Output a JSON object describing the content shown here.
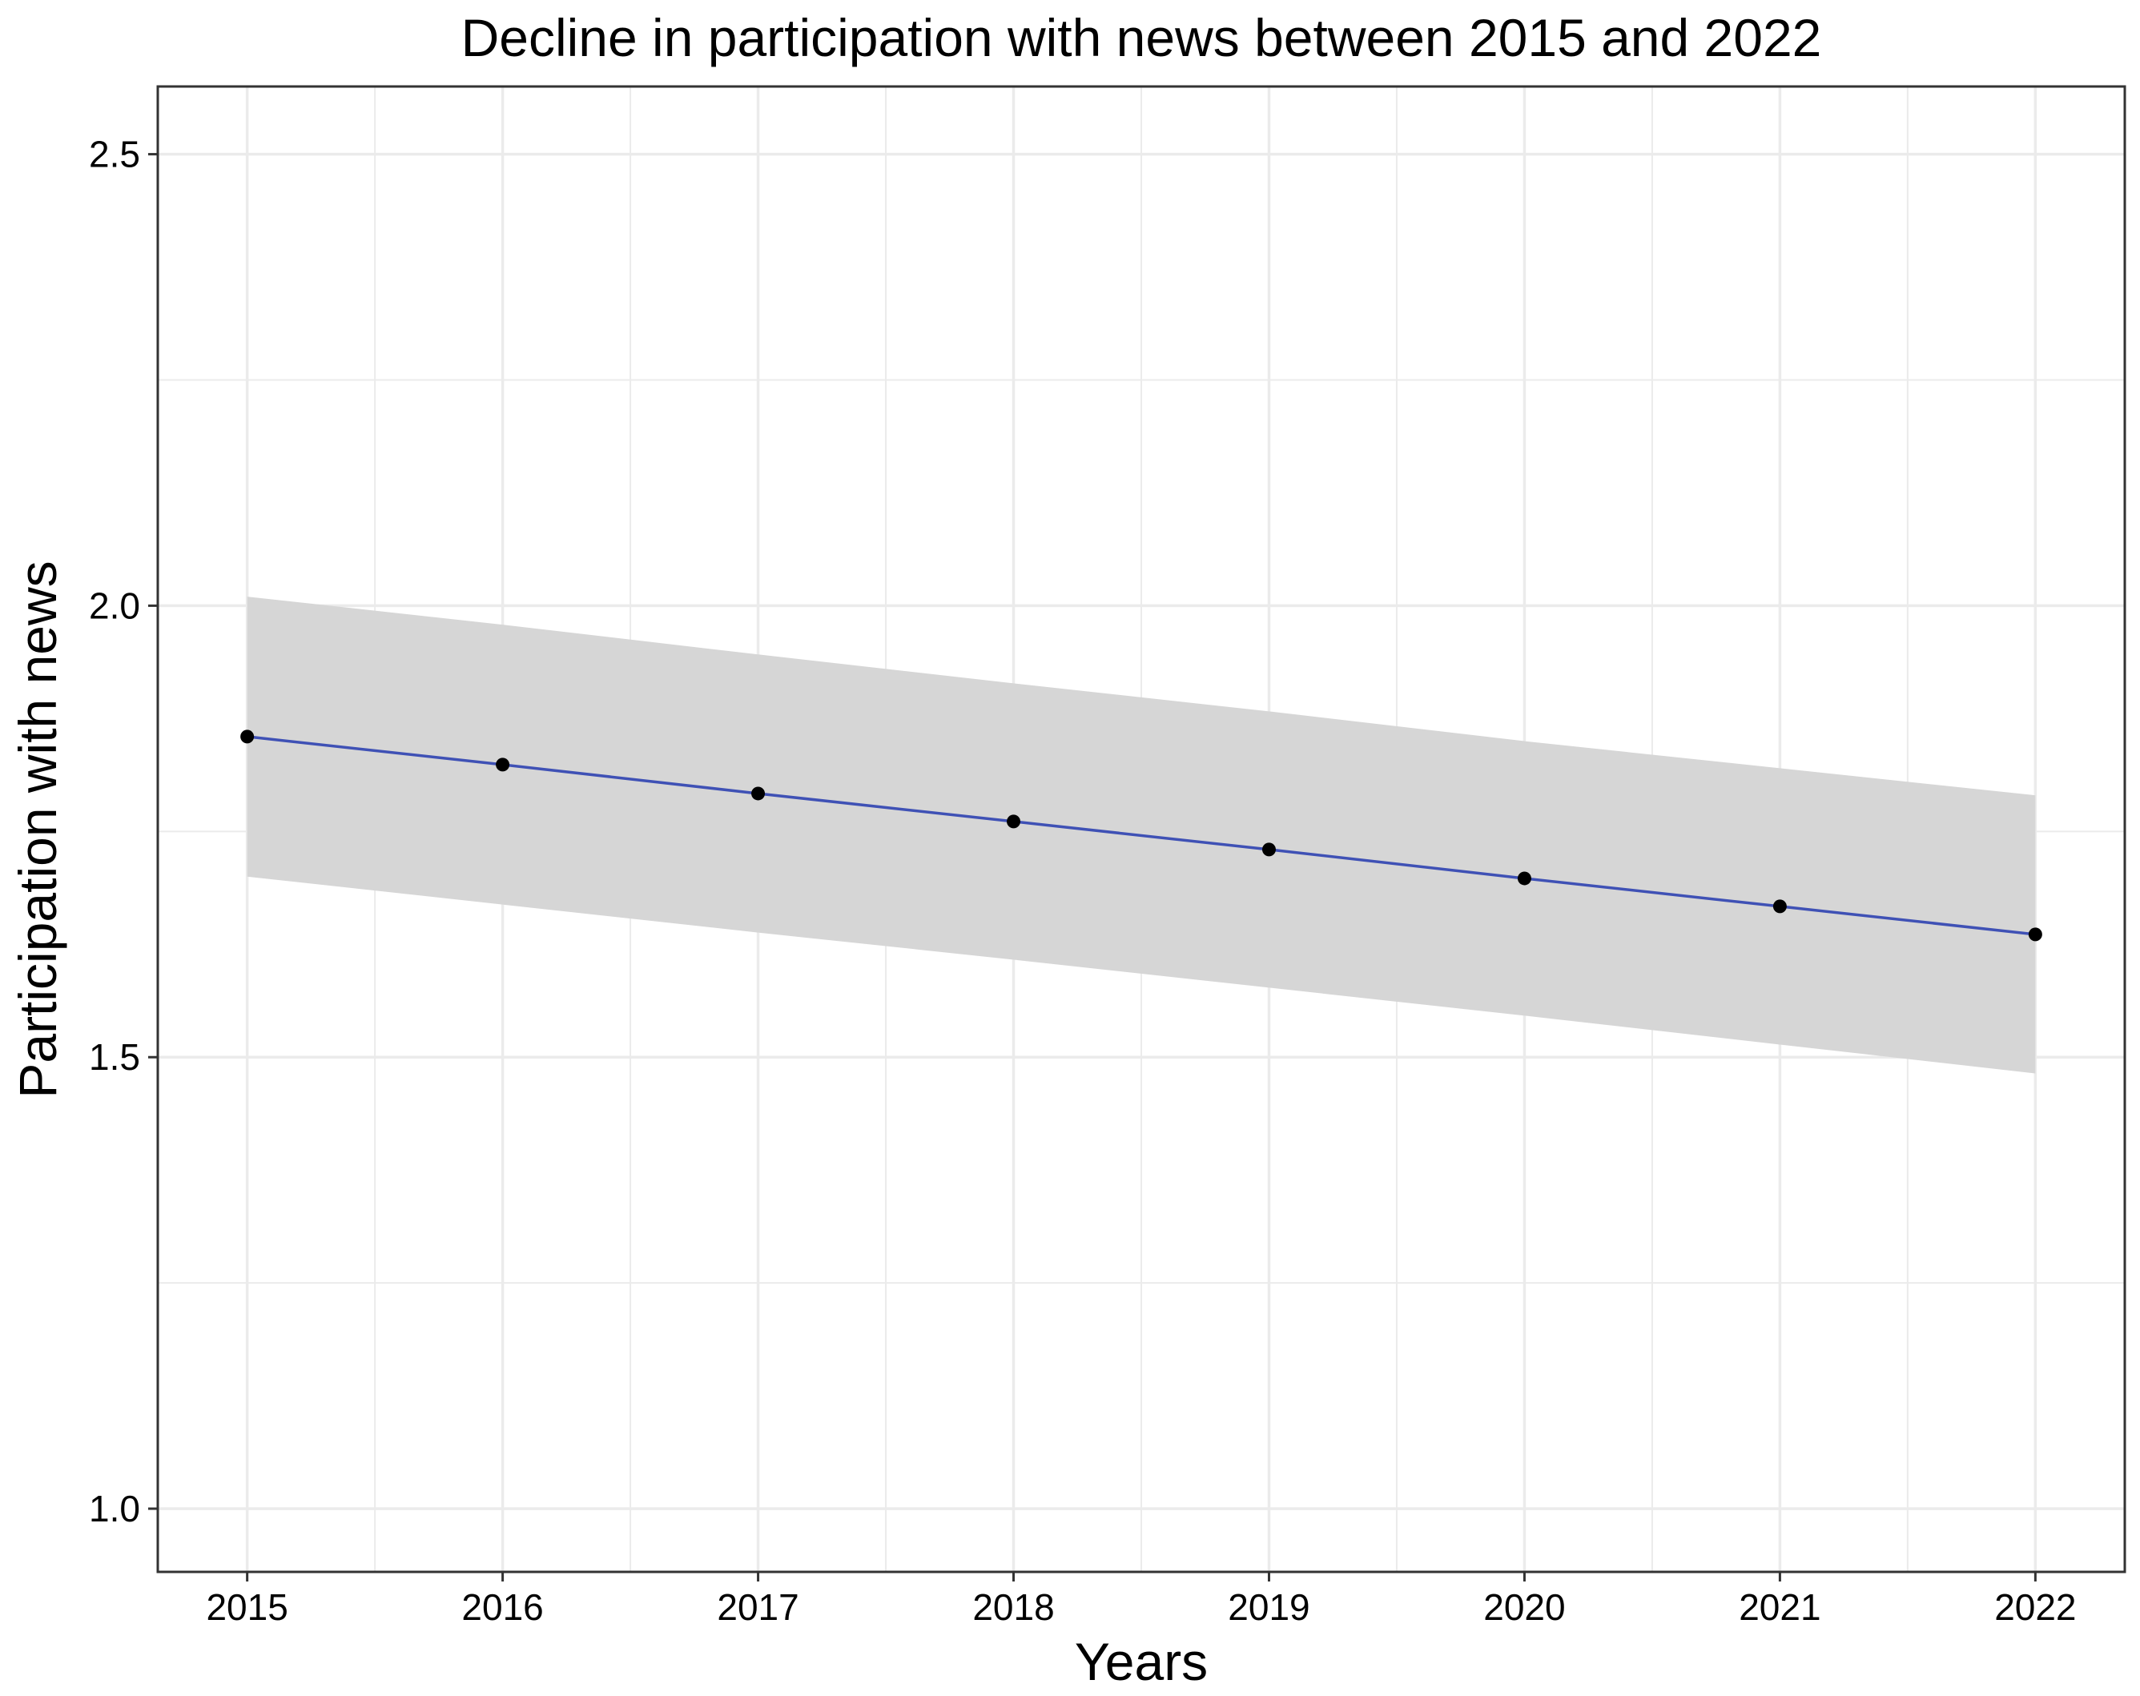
{
  "chart_data": {
    "type": "line",
    "title": "Decline in participation with news between 2015 and 2022",
    "xlabel": "Years",
    "ylabel": "Participation with news",
    "x": [
      2015,
      2016,
      2017,
      2018,
      2019,
      2020,
      2021,
      2022
    ],
    "x_tick_labels": [
      "2015",
      "2016",
      "2017",
      "2018",
      "2019",
      "2020",
      "2021",
      "2022"
    ],
    "y_ticks": [
      1.0,
      1.5,
      2.0,
      2.5
    ],
    "y_tick_labels": [
      "1.0",
      "1.5",
      "2.0",
      "2.5"
    ],
    "xlim": [
      2014.65,
      2022.35
    ],
    "ylim": [
      0.93,
      2.575
    ],
    "grid": true,
    "legend": "none",
    "series": [
      {
        "values": [
          1.855,
          1.824,
          1.792,
          1.761,
          1.73,
          1.698,
          1.667,
          1.636
        ],
        "color": "#3f51b5",
        "ci_lower": [
          1.7,
          1.669,
          1.638,
          1.608,
          1.577,
          1.546,
          1.514,
          1.482
        ],
        "ci_upper": [
          2.01,
          1.979,
          1.946,
          1.914,
          1.883,
          1.85,
          1.82,
          1.79
        ]
      }
    ],
    "colors": {
      "ribbon": "#d6d6d6",
      "point": "#000000",
      "grid": "#ebebeb",
      "frame": "#333333"
    }
  }
}
